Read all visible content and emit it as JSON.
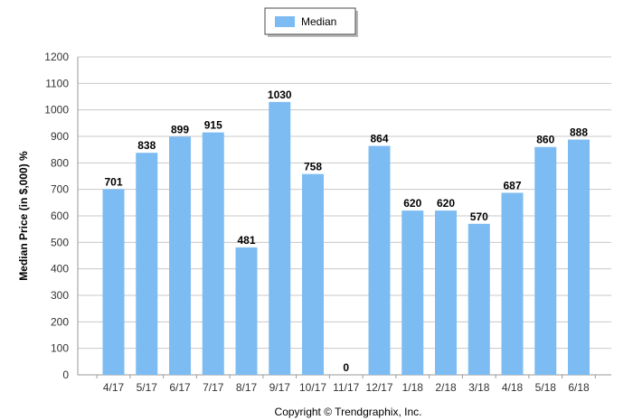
{
  "chart_data": {
    "type": "bar",
    "categories": [
      "4/17",
      "5/17",
      "6/17",
      "7/17",
      "8/17",
      "9/17",
      "10/17",
      "11/17",
      "12/17",
      "1/18",
      "2/18",
      "3/18",
      "4/18",
      "5/18",
      "6/18"
    ],
    "series": [
      {
        "name": "Median",
        "values": [
          701,
          838,
          899,
          915,
          481,
          1030,
          758,
          0,
          864,
          620,
          620,
          570,
          687,
          860,
          888
        ]
      }
    ],
    "data_labels": [
      "701",
      "838",
      "899",
      "915",
      "481",
      "1030",
      "758",
      "0",
      "864",
      "620",
      "620",
      "570",
      "687",
      "860",
      "888"
    ],
    "title": "",
    "xlabel": "",
    "ylabel": "Median Price (in $,000) %",
    "ylim": [
      0,
      1200
    ],
    "yticks": [
      0,
      100,
      200,
      300,
      400,
      500,
      600,
      700,
      800,
      900,
      1000,
      1100,
      1200
    ],
    "grid": true,
    "legend_position": "top-center",
    "colors": {
      "bar": "#7cbcf2",
      "grid": "#c8c8c8",
      "axis": "#9a9a9a"
    }
  },
  "footer": {
    "copyright": "Copyright © Trendgraphix, Inc."
  }
}
